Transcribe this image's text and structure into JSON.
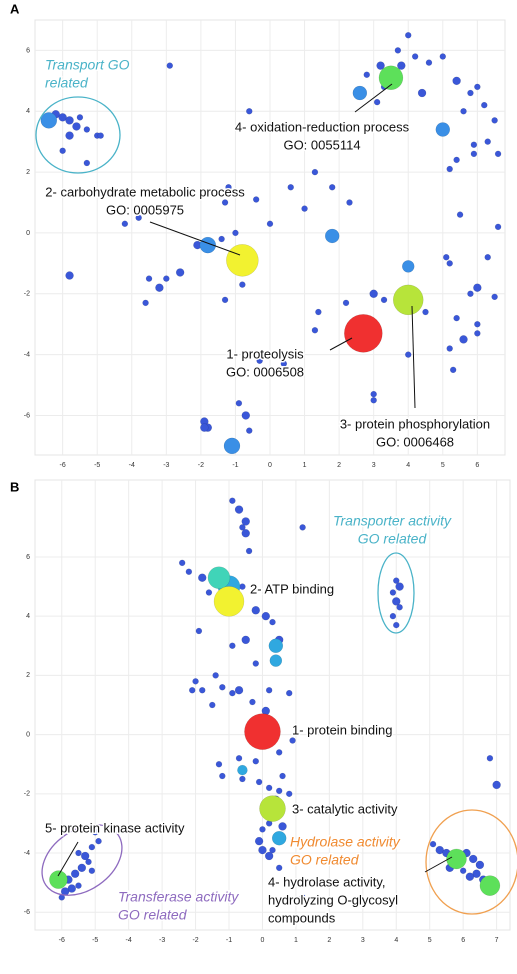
{
  "chart_data": [
    {
      "type": "scatter",
      "panel_label": "A",
      "xlim": [
        -6.8,
        6.8
      ],
      "ylim": [
        -7.3,
        7.0
      ],
      "xticks": [
        -6,
        -5,
        -4,
        -3,
        -2,
        -1,
        0,
        1,
        2,
        3,
        4,
        5,
        6
      ],
      "yticks": [
        -6,
        -4,
        -2,
        0,
        2,
        4,
        6
      ],
      "grid": true,
      "series": [
        {
          "color": "#3a57d8",
          "x": [
            3.7,
            4.0,
            4.2,
            3.2,
            3.5,
            3.8,
            2.8,
            3.3,
            4.6,
            5.0,
            5.4,
            5.8,
            6.0,
            5.6,
            6.2,
            6.5,
            6.3,
            5.9,
            6.6,
            5.4,
            5.2,
            5.9,
            4.4,
            3.1,
            -0.6,
            -6.2,
            -6.0,
            -5.8,
            -5.5,
            -5.6,
            -5.3,
            -5.8,
            -5.0,
            -4.9,
            -6.0,
            -5.3,
            -2.9,
            -1.2,
            -1.3,
            -0.4,
            0.6,
            1.3,
            1.8,
            2.3,
            1.0,
            0.0,
            -1.0,
            -1.4,
            -2.1,
            -4.2,
            -3.8,
            -5.8,
            -3.5,
            -3.0,
            -2.6,
            -3.2,
            -3.6,
            -0.8,
            -1.3,
            1.4,
            2.2,
            3.0,
            3.3,
            3.8,
            4.5,
            5.2,
            5.1,
            5.5,
            6.6,
            6.3,
            6.0,
            5.8,
            6.5,
            5.4,
            6.0,
            5.6,
            6.0,
            5.2,
            4.0,
            1.3,
            3.0,
            3.0,
            -0.9,
            -0.7,
            -0.6,
            -1.9,
            -1.8,
            -1.9,
            -0.3,
            0.4,
            5.3
          ],
          "values": [
            6.0,
            6.5,
            5.8,
            5.5,
            5.3,
            5.5,
            5.2,
            4.8,
            5.6,
            5.8,
            5.0,
            4.6,
            4.8,
            4.0,
            4.2,
            3.7,
            3.0,
            2.9,
            2.6,
            2.4,
            2.1,
            2.6,
            4.6,
            4.3,
            4.0,
            3.9,
            3.8,
            3.7,
            3.8,
            3.5,
            3.4,
            3.2,
            3.2,
            3.2,
            2.7,
            2.3,
            5.5,
            1.5,
            1.0,
            1.1,
            1.5,
            2.0,
            1.5,
            1.0,
            0.8,
            0.3,
            0.0,
            -0.2,
            -0.4,
            0.3,
            0.5,
            -1.4,
            -1.5,
            -1.5,
            -1.3,
            -1.8,
            -2.3,
            -1.7,
            -2.2,
            -2.6,
            -2.3,
            -2.0,
            -2.2,
            -2.0,
            -2.6,
            -1.0,
            -0.8,
            0.6,
            0.2,
            -0.8,
            -1.8,
            -2.0,
            -2.1,
            -2.8,
            -3.0,
            -3.5,
            -3.3,
            -3.8,
            -4.0,
            -3.2,
            -5.3,
            -5.5,
            -5.6,
            -6.0,
            -6.5,
            -6.2,
            -6.4,
            -6.4,
            -4.2,
            -4.3,
            -4.5
          ],
          "sizes": [
            3,
            3,
            3,
            4,
            3,
            4,
            3,
            3,
            3,
            3,
            4,
            3,
            3,
            3,
            3,
            3,
            3,
            3,
            3,
            3,
            3,
            3,
            4,
            3,
            3,
            4,
            4,
            4,
            3,
            4,
            3,
            4,
            3,
            3,
            3,
            3,
            3,
            3,
            3,
            3,
            3,
            3,
            3,
            3,
            3,
            3,
            3,
            3,
            4,
            3,
            3,
            4,
            3,
            3,
            4,
            4,
            3,
            3,
            3,
            3,
            3,
            4,
            3,
            3,
            3,
            3,
            3,
            3,
            3,
            3,
            4,
            3,
            3,
            3,
            3,
            4,
            3,
            3,
            3,
            3,
            3,
            3,
            3,
            4,
            3,
            4,
            4,
            4,
            3,
            3,
            3
          ]
        },
        {
          "color": "#3a8fe6",
          "x": [
            2.6,
            5.0,
            4.0,
            -6.4,
            1.8,
            -1.8,
            -1.1
          ],
          "values": [
            4.6,
            3.4,
            -1.1,
            3.7,
            -0.1,
            -0.4,
            -7.0
          ],
          "sizes": [
            7,
            7,
            6,
            8,
            7,
            8,
            8
          ]
        },
        {
          "color": "#f2f230",
          "x": [
            -0.8
          ],
          "values": [
            -0.9
          ],
          "sizes": [
            16
          ]
        },
        {
          "color": "#b7e43a",
          "x": [
            4.0
          ],
          "values": [
            -2.2
          ],
          "sizes": [
            15
          ]
        },
        {
          "color": "#5de05a",
          "x": [
            3.5
          ],
          "values": [
            5.1
          ],
          "sizes": [
            12
          ]
        },
        {
          "color": "#f03030",
          "x": [
            2.7
          ],
          "values": [
            -3.3
          ],
          "sizes": [
            19
          ]
        }
      ],
      "annotations": [
        {
          "lines": [
            "Transport  GO",
            "related"
          ],
          "color": "#4ab3c8"
        },
        {
          "lines": [
            "4- oxidation-reduction process",
            "GO: 0055114"
          ],
          "color": "#111111"
        },
        {
          "lines": [
            "2- carbohydrate metabolic process",
            "GO: 0005975"
          ],
          "color": "#111111"
        },
        {
          "lines": [
            "1- proteolysis",
            "GO: 0006508"
          ],
          "color": "#111111"
        },
        {
          "lines": [
            "3- protein phosphorylation",
            "GO: 0006468"
          ],
          "color": "#111111"
        }
      ]
    },
    {
      "type": "scatter",
      "panel_label": "B",
      "xlim": [
        -6.8,
        7.4
      ],
      "ylim": [
        -6.6,
        8.6
      ],
      "xticks": [
        -6,
        -5,
        -4,
        -3,
        -2,
        -1,
        0,
        1,
        2,
        3,
        4,
        5,
        6,
        7
      ],
      "yticks": [
        -6,
        -4,
        -2,
        0,
        2,
        4,
        6
      ],
      "grid": true,
      "series": [
        {
          "color": "#3a57d8",
          "x": [
            -0.9,
            -0.7,
            -0.5,
            -0.6,
            -0.5,
            -0.4,
            1.2,
            -2.4,
            -2.2,
            -1.8,
            -0.6,
            -1.6,
            -0.2,
            0.1,
            0.3,
            0.5,
            -1.9,
            -0.5,
            -0.9,
            -0.2,
            -1.4,
            -2.0,
            -1.8,
            -1.2,
            -0.7,
            -0.9,
            -2.1,
            -1.5,
            0.2,
            0.8,
            -0.3,
            0.1,
            0.9,
            0.5,
            -0.7,
            -0.2,
            -1.3,
            -1.2,
            -0.6,
            -0.1,
            0.2,
            0.6,
            0.5,
            0.4,
            0.8,
            0.2,
            0.6,
            0.0,
            -0.1,
            0.0,
            0.3,
            0.2,
            0.5,
            1.2,
            4.0,
            4.1,
            3.9,
            4.0,
            4.1,
            3.9,
            4.0,
            6.8,
            7.0,
            5.1,
            5.3,
            5.5,
            5.7,
            5.9,
            6.1,
            6.3,
            6.5,
            6.4,
            6.6,
            6.2,
            6.0,
            6.8,
            5.6,
            5.8,
            -5.0,
            -5.1,
            -5.3,
            -5.5,
            -5.4,
            -5.6,
            -5.8,
            -5.7,
            -5.9,
            -6.0,
            -5.5,
            -5.2,
            -4.9,
            -5.1
          ],
          "values": [
            7.9,
            7.6,
            7.2,
            7.0,
            6.8,
            6.2,
            7.0,
            5.8,
            5.5,
            5.3,
            5.0,
            4.8,
            4.2,
            4.0,
            3.8,
            3.2,
            3.5,
            3.2,
            3.0,
            2.4,
            2.0,
            1.8,
            1.5,
            1.6,
            1.5,
            1.4,
            1.5,
            1.0,
            1.5,
            1.4,
            1.1,
            0.8,
            -0.2,
            -0.6,
            -0.8,
            -0.9,
            -1.0,
            -1.4,
            -1.5,
            -1.6,
            -1.8,
            -1.4,
            -1.9,
            -2.2,
            -2.0,
            -3.0,
            -3.1,
            -3.2,
            -3.6,
            -3.9,
            -3.9,
            -4.1,
            -4.5,
            -5.5,
            5.2,
            5.0,
            4.8,
            4.5,
            4.3,
            4.0,
            3.7,
            -0.8,
            -1.7,
            -3.7,
            -3.9,
            -4.0,
            -4.1,
            -4.3,
            -4.0,
            -4.2,
            -4.4,
            -4.7,
            -4.9,
            -4.8,
            -4.6,
            -5.3,
            -4.5,
            -4.0,
            -3.3,
            -3.8,
            -4.1,
            -4.0,
            -4.5,
            -4.7,
            -4.9,
            -5.2,
            -5.3,
            -5.5,
            -5.1,
            -4.3,
            -3.6,
            -4.6
          ],
          "sizes": [
            3,
            4,
            4,
            3,
            4,
            3,
            3,
            3,
            3,
            4,
            3,
            3,
            4,
            4,
            3,
            4,
            3,
            4,
            3,
            3,
            3,
            3,
            3,
            3,
            4,
            3,
            3,
            3,
            3,
            3,
            3,
            4,
            3,
            3,
            3,
            3,
            3,
            3,
            3,
            3,
            3,
            3,
            3,
            4,
            3,
            3,
            4,
            3,
            4,
            4,
            3,
            4,
            3,
            3,
            3,
            4,
            3,
            4,
            3,
            3,
            3,
            3,
            4,
            3,
            4,
            4,
            4,
            4,
            4,
            4,
            4,
            4,
            4,
            4,
            3,
            4,
            4,
            3,
            3,
            3,
            4,
            3,
            4,
            4,
            4,
            4,
            4,
            3,
            3,
            3,
            3,
            3
          ]
        },
        {
          "color": "#2fa8e0",
          "x": [
            0.4,
            0.4,
            0.5,
            0.0,
            -0.6,
            -1.0
          ],
          "values": [
            3.0,
            2.5,
            -3.5,
            0.0,
            -1.2,
            5.0
          ],
          "sizes": [
            7,
            6,
            7,
            7,
            5,
            11
          ]
        },
        {
          "color": "#40d4b8",
          "x": [
            -1.3
          ],
          "values": [
            5.3
          ],
          "sizes": [
            11
          ]
        },
        {
          "color": "#f2f230",
          "x": [
            -1.0
          ],
          "values": [
            4.5
          ],
          "sizes": [
            15
          ]
        },
        {
          "color": "#f03030",
          "x": [
            0.0
          ],
          "values": [
            0.1
          ],
          "sizes": [
            18
          ]
        },
        {
          "color": "#b7e43a",
          "x": [
            0.3
          ],
          "values": [
            -2.5
          ],
          "sizes": [
            13
          ]
        },
        {
          "color": "#5de05a",
          "x": [
            5.8,
            6.8,
            -6.1
          ],
          "values": [
            -4.2,
            -5.1,
            -4.9
          ],
          "sizes": [
            10,
            10,
            9
          ]
        }
      ],
      "annotations": [
        {
          "lines": [
            "Transporter activity",
            "GO related"
          ],
          "color": "#4ab3c8"
        },
        {
          "lines": [
            "2- ATP binding"
          ],
          "color": "#111111"
        },
        {
          "lines": [
            "1- protein binding"
          ],
          "color": "#111111"
        },
        {
          "lines": [
            "3- catalytic activity"
          ],
          "color": "#111111"
        },
        {
          "lines": [
            "5- protein kinase activity"
          ],
          "color": "#111111"
        },
        {
          "lines": [
            "Hydrolase activity",
            "GO related"
          ],
          "color": "#f08a30"
        },
        {
          "lines": [
            "4- hydrolase activity,",
            "hydrolyzing O-glycosyl",
            "compounds"
          ],
          "color": "#111111"
        },
        {
          "lines": [
            "Transferase activity",
            "GO related"
          ],
          "color": "#8e6bbf"
        }
      ]
    }
  ]
}
